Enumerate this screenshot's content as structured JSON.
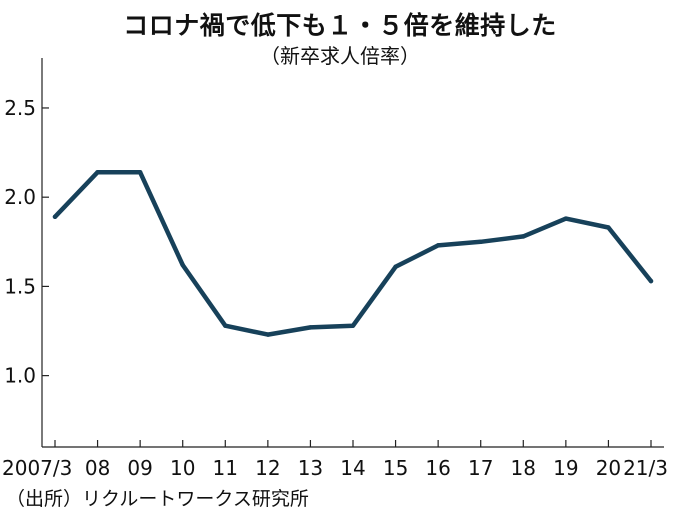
{
  "title": "コロナ禍で低下も１・５倍を維持した",
  "subtitle": "（新卒求人倍率）",
  "source": "（出所）リクルートワークス研究所",
  "colors": {
    "line": "#17415a",
    "axis": "#222222"
  },
  "chart_data": {
    "type": "line",
    "title": "コロナ禍で低下も１・５倍を維持した",
    "subtitle": "（新卒求人倍率）",
    "xlabel": "",
    "ylabel": "",
    "categories": [
      "2007/3",
      "08",
      "09",
      "10",
      "11",
      "12",
      "13",
      "14",
      "15",
      "16",
      "17",
      "18",
      "19",
      "20",
      "21/3"
    ],
    "values": [
      1.89,
      2.14,
      2.14,
      1.62,
      1.28,
      1.23,
      1.27,
      1.28,
      1.61,
      1.73,
      1.75,
      1.78,
      1.88,
      1.83,
      1.53
    ],
    "yticks": [
      1.0,
      1.5,
      2.0,
      2.5
    ],
    "ytick_labels": [
      "1.0",
      "1.5",
      "2.0",
      "2.5"
    ],
    "ylim": [
      0.6,
      2.78
    ],
    "grid": false,
    "legend": "none"
  }
}
